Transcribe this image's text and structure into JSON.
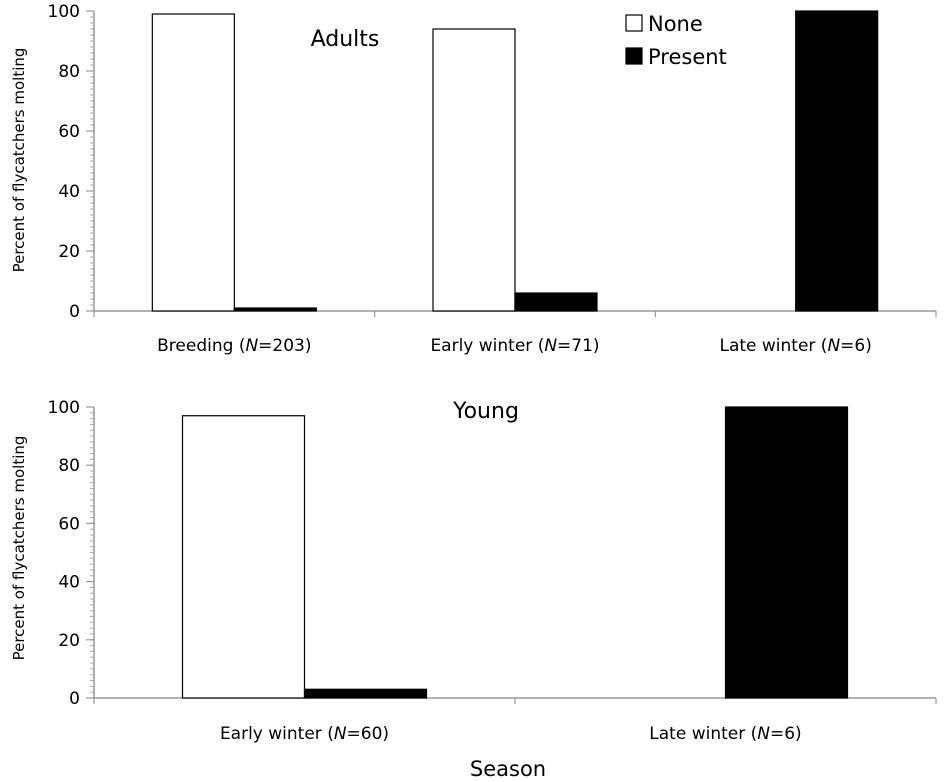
{
  "chart_data": [
    {
      "type": "bar",
      "title": "Adults",
      "ylabel": "Percent of flycatchers molting",
      "xlabel": "",
      "ylim": [
        0,
        100
      ],
      "yticks": [
        "0",
        "20",
        "40",
        "60",
        "80",
        "100"
      ],
      "categories": [
        {
          "pre": "Breeding (",
          "italic": "N",
          "post": "=203)"
        },
        {
          "pre": "Early winter (",
          "italic": "N",
          "post": "=71)"
        },
        {
          "pre": "Late winter (",
          "italic": "N",
          "post": "=6)"
        }
      ],
      "series": [
        {
          "name": "None",
          "color": "#ffffff",
          "values": [
            99,
            94,
            0
          ]
        },
        {
          "name": "Present",
          "color": "#000000",
          "values": [
            1,
            6,
            100
          ]
        }
      ],
      "legend": {
        "placement": "top-right",
        "entries": [
          "None",
          "Present"
        ]
      }
    },
    {
      "type": "bar",
      "title": "Young",
      "ylabel": "Percent of flycatchers molting",
      "xlabel": "Season",
      "ylim": [
        0,
        100
      ],
      "yticks": [
        "0",
        "20",
        "40",
        "60",
        "80",
        "100"
      ],
      "categories": [
        {
          "pre": "Early winter (",
          "italic": "N",
          "post": "=60)"
        },
        {
          "pre": "Late winter (",
          "italic": "N",
          "post": "=6)"
        }
      ],
      "series": [
        {
          "name": "None",
          "color": "#ffffff",
          "values": [
            97,
            0
          ]
        },
        {
          "name": "Present",
          "color": "#000000",
          "values": [
            3,
            100
          ]
        }
      ]
    }
  ]
}
